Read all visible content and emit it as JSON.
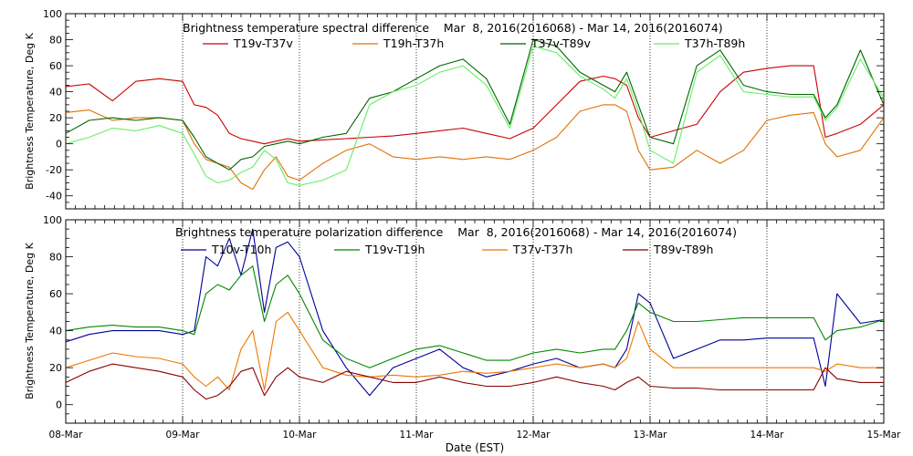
{
  "x_axis": {
    "label": "Date (EST)",
    "ticks": [
      "08-Mar",
      "09-Mar",
      "10-Mar",
      "11-Mar",
      "12-Mar",
      "13-Mar",
      "14-Mar",
      "15-Mar"
    ],
    "range": [
      0,
      7
    ]
  },
  "chart_data": [
    {
      "type": "line",
      "title": "Brightness temperature spectral difference    Mar  8, 2016(2016068) - Mar 14, 2016(2016074)",
      "ylabel": "Brightness Temperature, Deg K",
      "ylim": [
        -50,
        100
      ],
      "yticks": [
        -40,
        -20,
        0,
        20,
        40,
        60,
        80,
        100
      ],
      "grid": "dotted-vertical",
      "legend": "top",
      "x": [
        0.0,
        0.2,
        0.4,
        0.6,
        0.8,
        1.0,
        1.1,
        1.2,
        1.3,
        1.4,
        1.5,
        1.6,
        1.7,
        1.8,
        1.9,
        2.0,
        2.2,
        2.4,
        2.6,
        2.8,
        3.0,
        3.2,
        3.4,
        3.6,
        3.8,
        4.0,
        4.2,
        4.4,
        4.6,
        4.7,
        4.8,
        4.9,
        5.0,
        5.2,
        5.4,
        5.6,
        5.8,
        6.0,
        6.2,
        6.4,
        6.5,
        6.6,
        6.8,
        7.0
      ],
      "series": [
        {
          "name": "T19v-T37v",
          "color": "#cc0000",
          "values": [
            44,
            46,
            33,
            48,
            50,
            48,
            30,
            28,
            22,
            8,
            4,
            2,
            0,
            2,
            4,
            2,
            3,
            4,
            5,
            6,
            8,
            10,
            12,
            8,
            4,
            12,
            30,
            48,
            52,
            50,
            45,
            20,
            5,
            10,
            15,
            40,
            55,
            58,
            60,
            60,
            5,
            8,
            15,
            30
          ]
        },
        {
          "name": "T19h-T37h",
          "color": "#e07000",
          "values": [
            24,
            26,
            18,
            20,
            20,
            18,
            0,
            -12,
            -15,
            -18,
            -30,
            -35,
            -20,
            -10,
            -25,
            -28,
            -15,
            -5,
            0,
            -10,
            -12,
            -10,
            -12,
            -10,
            -12,
            -5,
            5,
            25,
            30,
            30,
            25,
            -5,
            -20,
            -18,
            -5,
            -15,
            -5,
            18,
            22,
            24,
            0,
            -10,
            -5,
            20
          ]
        },
        {
          "name": "T37v-T89v",
          "color": "#006400",
          "values": [
            8,
            18,
            20,
            18,
            20,
            18,
            5,
            -10,
            -15,
            -20,
            -12,
            -10,
            -2,
            0,
            2,
            0,
            5,
            8,
            35,
            40,
            50,
            60,
            65,
            50,
            15,
            80,
            75,
            55,
            45,
            40,
            55,
            30,
            5,
            0,
            60,
            72,
            45,
            40,
            38,
            38,
            20,
            30,
            72,
            30
          ]
        },
        {
          "name": "T37h-T89h",
          "color": "#66ee66",
          "values": [
            0,
            5,
            12,
            10,
            14,
            8,
            -8,
            -25,
            -30,
            -28,
            -22,
            -18,
            -5,
            -12,
            -30,
            -32,
            -28,
            -20,
            30,
            40,
            45,
            55,
            60,
            45,
            12,
            75,
            70,
            52,
            42,
            35,
            50,
            25,
            -5,
            -15,
            55,
            68,
            40,
            38,
            36,
            36,
            18,
            28,
            65,
            35
          ]
        }
      ]
    },
    {
      "type": "line",
      "title": "Brightness temperature polarization difference    Mar  8, 2016(2016068) - Mar 14, 2016(2016074)",
      "ylabel": "Brightness Temperature, Deg K",
      "ylim": [
        -10,
        100
      ],
      "yticks": [
        0,
        20,
        40,
        60,
        80,
        100
      ],
      "grid": "dotted-vertical",
      "legend": "top",
      "x": [
        0.0,
        0.2,
        0.4,
        0.6,
        0.8,
        1.0,
        1.1,
        1.2,
        1.3,
        1.4,
        1.5,
        1.6,
        1.7,
        1.8,
        1.9,
        2.0,
        2.2,
        2.4,
        2.6,
        2.8,
        3.0,
        3.2,
        3.4,
        3.6,
        3.8,
        4.0,
        4.2,
        4.4,
        4.6,
        4.7,
        4.8,
        4.9,
        5.0,
        5.2,
        5.4,
        5.6,
        5.8,
        6.0,
        6.2,
        6.4,
        6.5,
        6.6,
        6.8,
        7.0
      ],
      "series": [
        {
          "name": "T10v-T10h",
          "color": "#000099",
          "values": [
            34,
            38,
            40,
            40,
            40,
            38,
            40,
            80,
            75,
            90,
            70,
            95,
            50,
            85,
            88,
            80,
            40,
            20,
            5,
            20,
            25,
            30,
            20,
            15,
            18,
            22,
            25,
            20,
            22,
            20,
            30,
            60,
            55,
            25,
            30,
            35,
            35,
            36,
            36,
            36,
            10,
            60,
            44,
            46
          ]
        },
        {
          "name": "T19v-T19h",
          "color": "#008800",
          "values": [
            40,
            42,
            43,
            42,
            42,
            40,
            38,
            60,
            65,
            62,
            70,
            75,
            45,
            65,
            70,
            60,
            35,
            25,
            20,
            25,
            30,
            32,
            28,
            24,
            24,
            28,
            30,
            28,
            30,
            30,
            40,
            55,
            50,
            45,
            45,
            46,
            47,
            47,
            47,
            47,
            35,
            40,
            42,
            46
          ]
        },
        {
          "name": "T37v-T37h",
          "color": "#ee7700",
          "values": [
            20,
            24,
            28,
            26,
            25,
            22,
            15,
            10,
            15,
            8,
            30,
            40,
            8,
            45,
            50,
            40,
            20,
            16,
            15,
            16,
            15,
            16,
            18,
            17,
            18,
            20,
            22,
            20,
            22,
            20,
            25,
            45,
            30,
            20,
            20,
            20,
            20,
            20,
            20,
            20,
            18,
            22,
            20,
            20
          ]
        },
        {
          "name": "T89v-T89h",
          "color": "#880000",
          "values": [
            12,
            18,
            22,
            20,
            18,
            15,
            8,
            3,
            5,
            10,
            18,
            20,
            5,
            15,
            20,
            15,
            12,
            18,
            15,
            12,
            12,
            15,
            12,
            10,
            10,
            12,
            15,
            12,
            10,
            8,
            12,
            15,
            10,
            9,
            9,
            8,
            8,
            8,
            8,
            8,
            20,
            14,
            12,
            12
          ]
        }
      ]
    }
  ]
}
